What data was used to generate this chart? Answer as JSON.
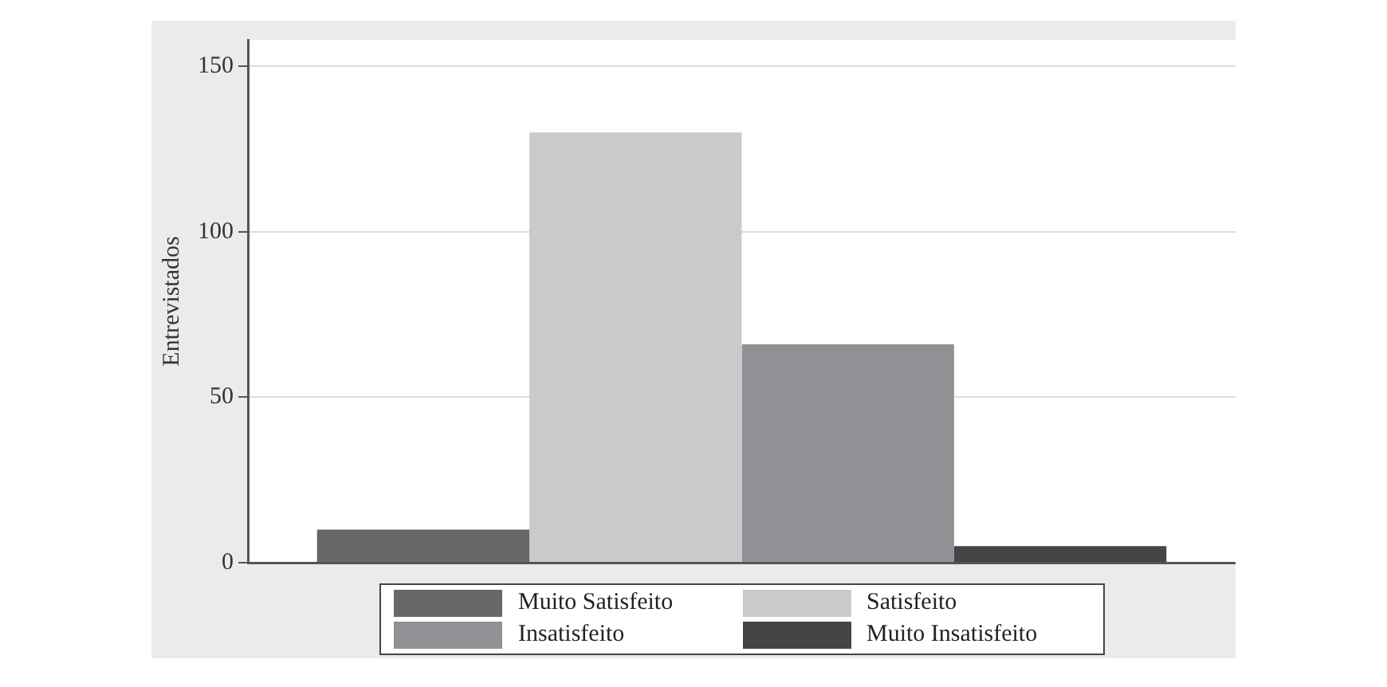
{
  "chart_data": {
    "type": "bar",
    "ylabel": "Entrevistados",
    "categories": [
      null
    ],
    "series": [
      {
        "name": "Muito Satisfeito",
        "color": "#68686b",
        "values": [
          10
        ]
      },
      {
        "name": "Satisfeito",
        "color": "#c9cacc",
        "values": [
          130
        ]
      },
      {
        "name": "Insatisfeito",
        "color": "#909195",
        "values": [
          66
        ]
      },
      {
        "name": "Muito Insatisfeito",
        "color": "#444547",
        "values": [
          5
        ]
      }
    ],
    "ylim": [
      0,
      158
    ],
    "yticks": [
      0,
      50,
      100,
      150
    ],
    "grid": "y",
    "legend": "bottom"
  }
}
